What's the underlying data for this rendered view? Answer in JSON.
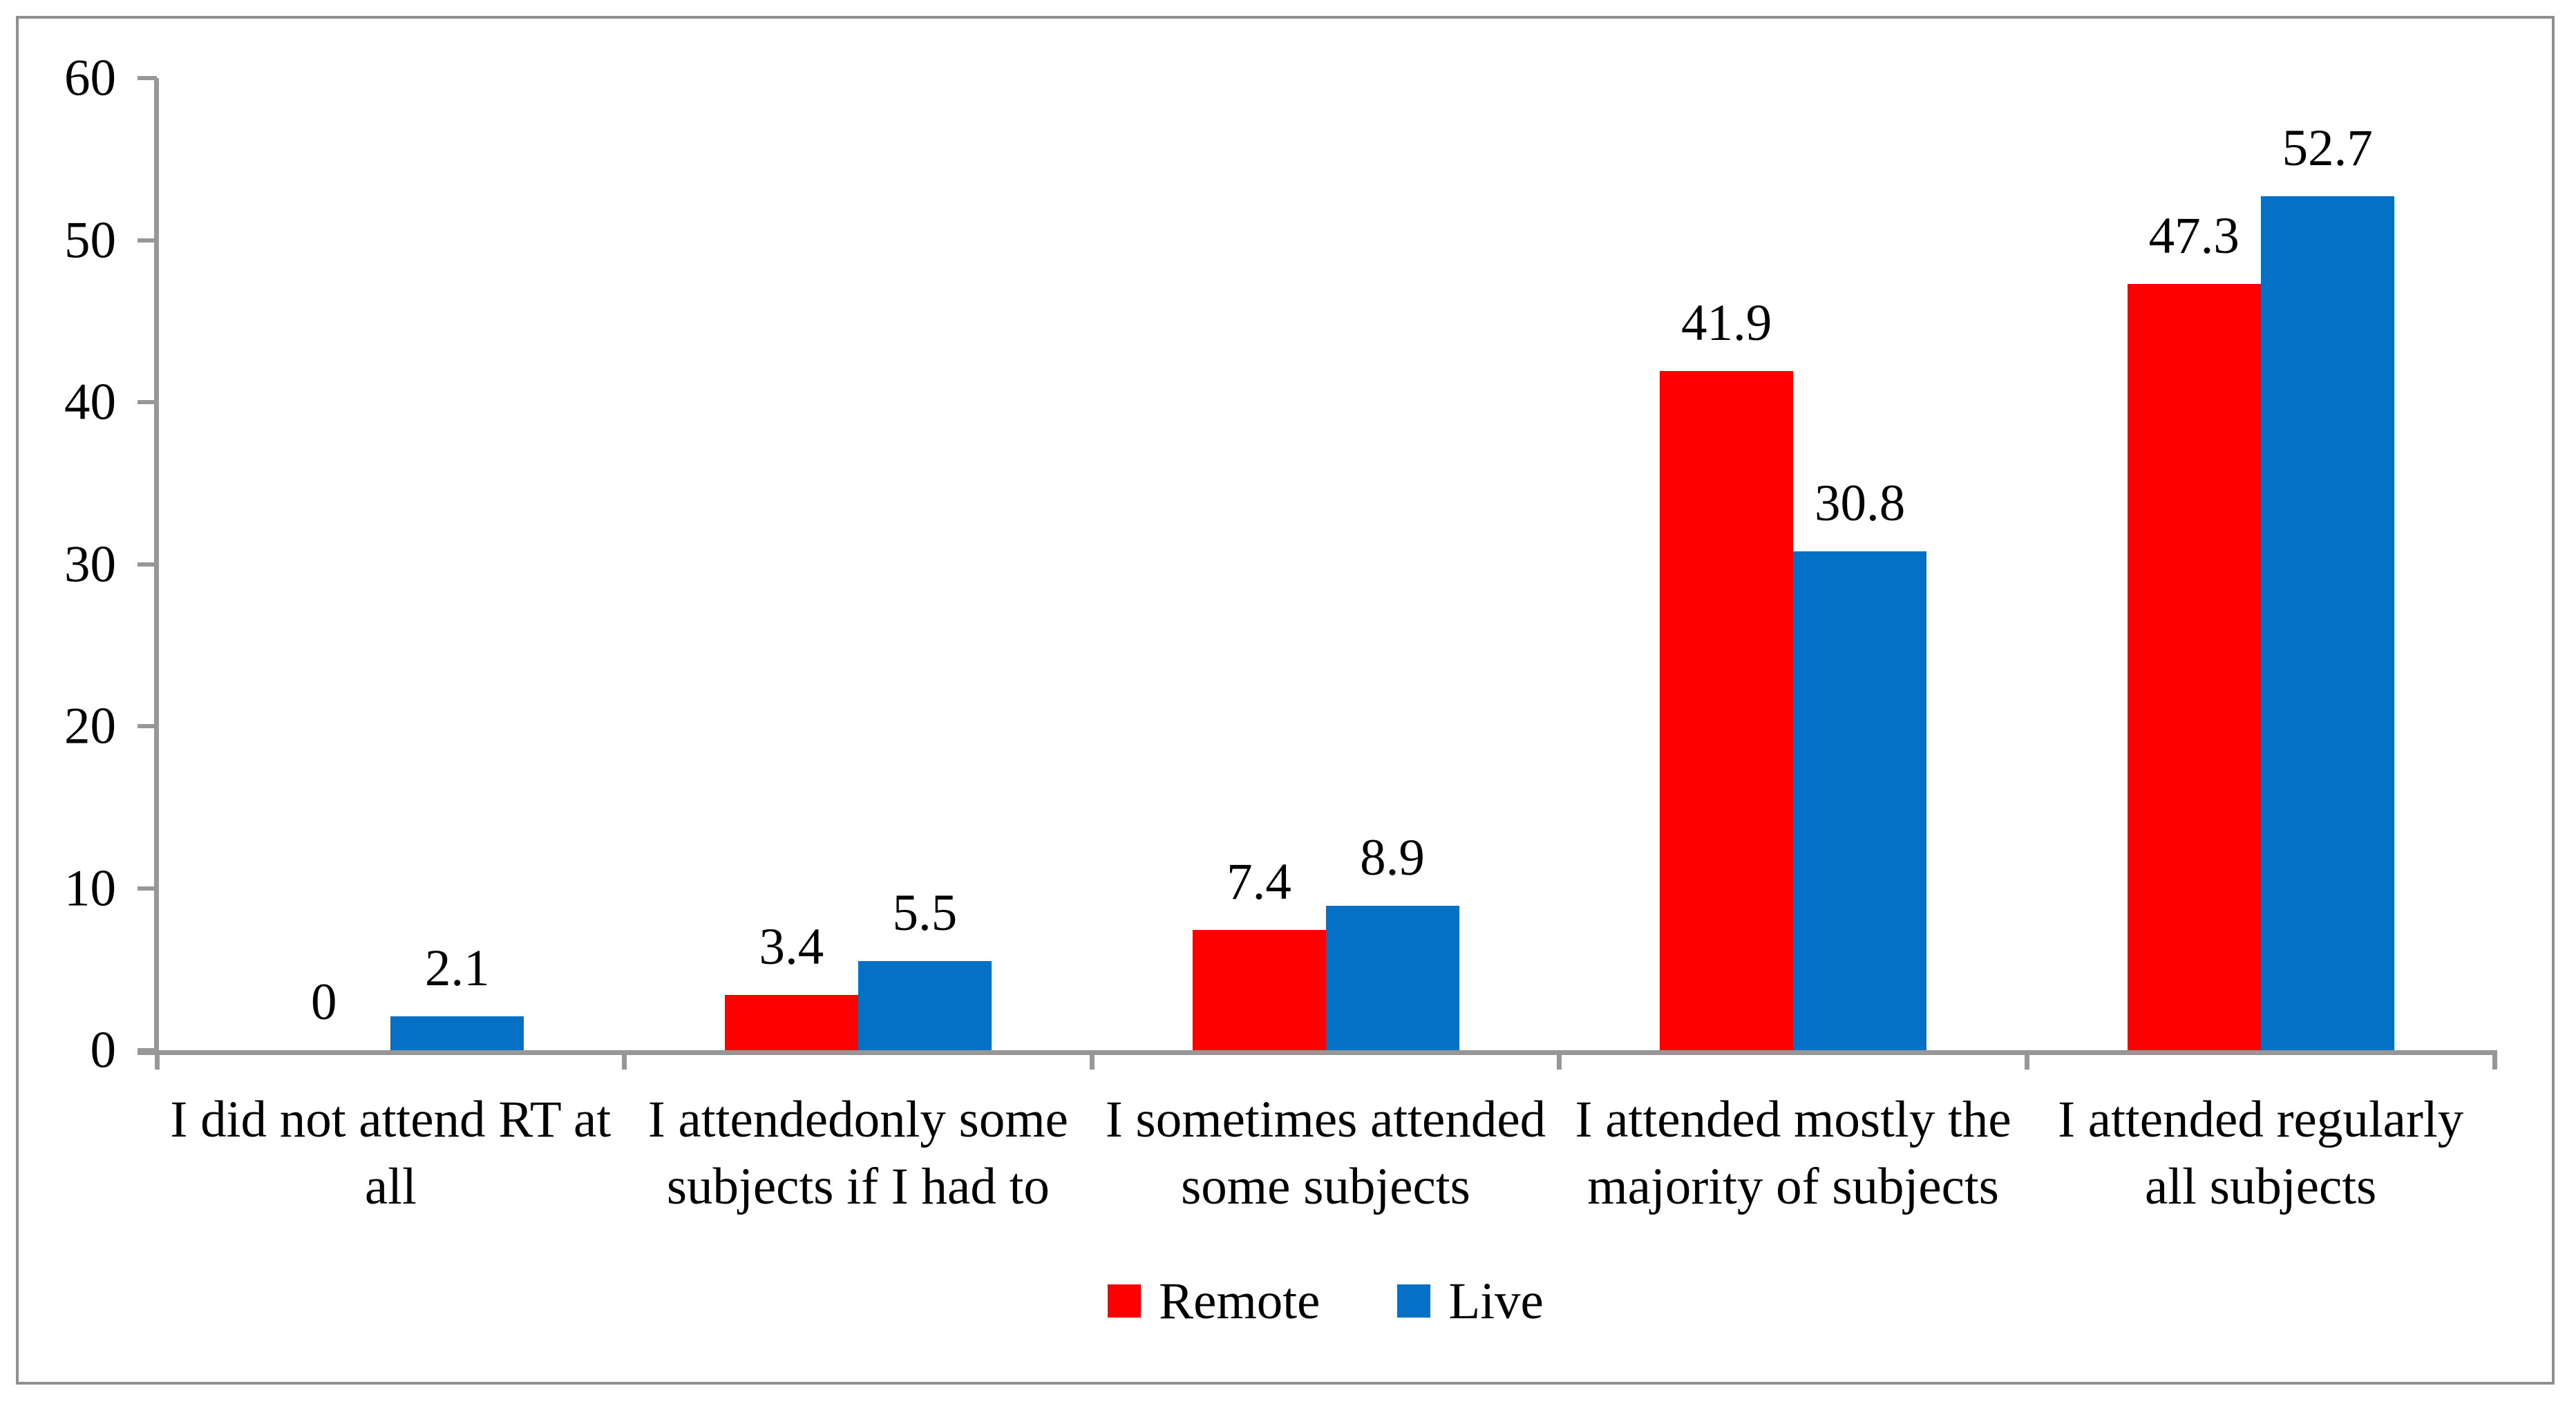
{
  "figure": {
    "background": "#FFFFFF",
    "border_color": "#8F8F8F",
    "axis_color": "#979797",
    "text_color": "#000000"
  },
  "chart_data": {
    "type": "bar",
    "title": "",
    "xlabel": "",
    "ylabel": "",
    "categories": [
      "I did not attend RT at all",
      "I attendedonly some subjects if I had to",
      "I sometimes attended some subjects",
      "I attended mostly the majority of subjects",
      "I attended regularly all subjects"
    ],
    "categories_lines": [
      [
        "I did not attend RT at",
        "all"
      ],
      [
        "I attendedonly some",
        "subjects if I had to"
      ],
      [
        "I sometimes attended",
        "some subjects"
      ],
      [
        "I attended mostly the",
        "majority of subjects"
      ],
      [
        "I attended regularly",
        "all subjects"
      ]
    ],
    "series": [
      {
        "name": "Remote",
        "color": "#FF0000",
        "values": [
          0,
          3.4,
          7.4,
          41.9,
          47.3
        ],
        "labels": [
          "0",
          "3.4",
          "7.4",
          "41.9",
          "47.3"
        ]
      },
      {
        "name": "Live",
        "color": "#0471C6",
        "values": [
          2.1,
          5.5,
          8.9,
          30.8,
          52.7
        ],
        "labels": [
          "2.1",
          "5.5",
          "8.9",
          "30.8",
          "52.7"
        ]
      }
    ],
    "ylim": [
      0,
      60
    ],
    "yticks": [
      0,
      10,
      20,
      30,
      40,
      50,
      60
    ],
    "grid": false,
    "data_labels": true,
    "legend_position": "bottom"
  }
}
